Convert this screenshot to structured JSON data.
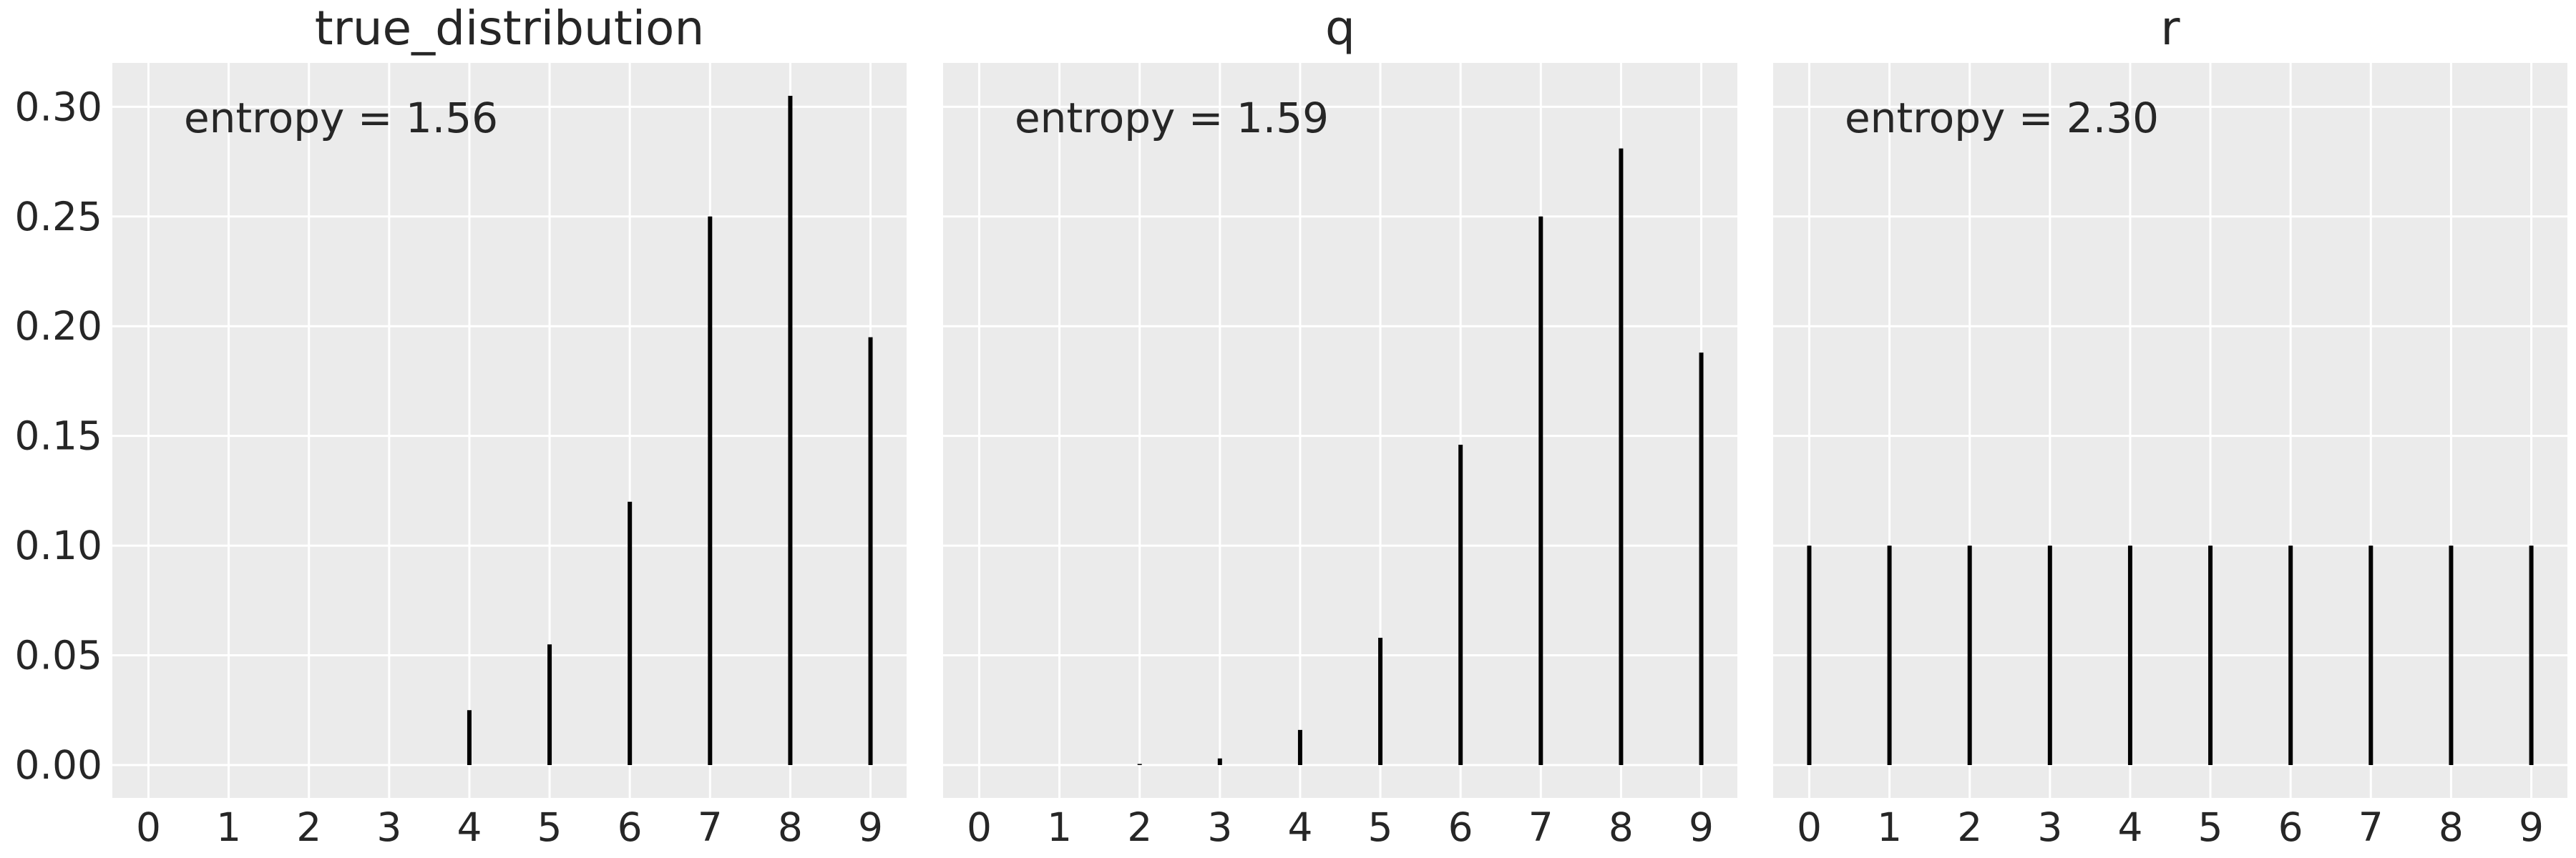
{
  "chart_data": [
    {
      "type": "stem",
      "title": "true_distribution",
      "annotation": "entropy = 1.56",
      "x": [
        0,
        1,
        2,
        3,
        4,
        5,
        6,
        7,
        8,
        9
      ],
      "y": [
        0,
        0,
        0,
        0,
        0.025,
        0.055,
        0.12,
        0.25,
        0.305,
        0.195
      ],
      "xticks": [
        "0",
        "1",
        "2",
        "3",
        "4",
        "5",
        "6",
        "7",
        "8",
        "9"
      ],
      "yticks": [
        "0.00",
        "0.05",
        "0.10",
        "0.15",
        "0.20",
        "0.25",
        "0.30"
      ],
      "ylim": [
        -0.015,
        0.32
      ],
      "xlim": [
        -0.45,
        9.45
      ],
      "grid": true
    },
    {
      "type": "stem",
      "title": "q",
      "annotation": "entropy = 1.59",
      "x": [
        0,
        1,
        2,
        3,
        4,
        5,
        6,
        7,
        8,
        9
      ],
      "y": [
        0,
        0,
        0.0005,
        0.003,
        0.016,
        0.058,
        0.146,
        0.25,
        0.281,
        0.188
      ],
      "xticks": [
        "0",
        "1",
        "2",
        "3",
        "4",
        "5",
        "6",
        "7",
        "8",
        "9"
      ],
      "yticks": [],
      "ylim": [
        -0.015,
        0.32
      ],
      "xlim": [
        -0.45,
        9.45
      ],
      "grid": true
    },
    {
      "type": "stem",
      "title": "r",
      "annotation": "entropy = 2.30",
      "x": [
        0,
        1,
        2,
        3,
        4,
        5,
        6,
        7,
        8,
        9
      ],
      "y": [
        0.1,
        0.1,
        0.1,
        0.1,
        0.1,
        0.1,
        0.1,
        0.1,
        0.1,
        0.1
      ],
      "xticks": [
        "0",
        "1",
        "2",
        "3",
        "4",
        "5",
        "6",
        "7",
        "8",
        "9"
      ],
      "yticks": [],
      "ylim": [
        -0.015,
        0.32
      ],
      "xlim": [
        -0.45,
        9.45
      ],
      "grid": true
    }
  ],
  "colors": {
    "background": "#ebebeb",
    "grid": "#ffffff",
    "stem": "#000000",
    "text": "#262626"
  }
}
